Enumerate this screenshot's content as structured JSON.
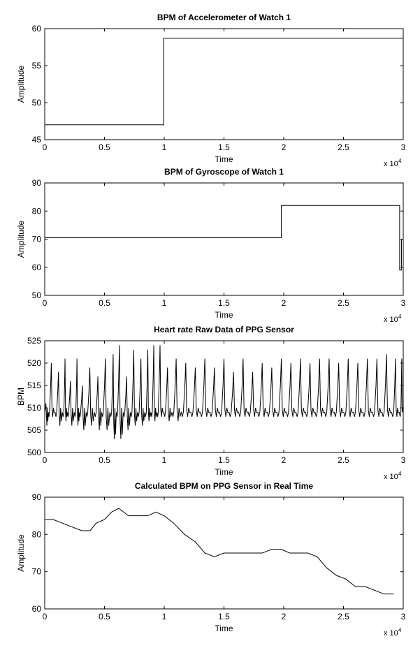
{
  "chart_data": [
    {
      "type": "line",
      "title": "BPM of Accelerometer of Watch 1",
      "xlabel": "Time",
      "ylabel": "Amplitude",
      "xlim": [
        0,
        30000
      ],
      "ylim": [
        45,
        60
      ],
      "x_ticks": [
        0,
        5000,
        10000,
        15000,
        20000,
        25000,
        30000
      ],
      "x_tick_labels": [
        "0",
        "0.5",
        "1",
        "1.5",
        "2",
        "2.5",
        "3"
      ],
      "y_ticks": [
        45,
        50,
        55,
        60
      ],
      "y_tick_labels": [
        "45",
        "50",
        "55",
        "60"
      ],
      "x_exponent": "x 10",
      "x_exponent_power": "4",
      "grid": false,
      "series": [
        {
          "x": [
            0,
            9950,
            9950,
            30000
          ],
          "y": [
            47,
            47,
            58.7,
            58.7
          ]
        }
      ]
    },
    {
      "type": "line",
      "title": "BPM of Gyroscope of Watch 1",
      "xlabel": "Time",
      "ylabel": "Amplitude",
      "xlim": [
        0,
        30000
      ],
      "ylim": [
        50,
        90
      ],
      "x_ticks": [
        0,
        5000,
        10000,
        15000,
        20000,
        25000,
        30000
      ],
      "x_tick_labels": [
        "0",
        "0.5",
        "1",
        "1.5",
        "2",
        "2.5",
        "3"
      ],
      "y_ticks": [
        50,
        60,
        70,
        80,
        90
      ],
      "y_tick_labels": [
        "50",
        "60",
        "70",
        "80",
        "90"
      ],
      "x_exponent": "x 10",
      "x_exponent_power": "4",
      "grid": false,
      "series": [
        {
          "x": [
            0,
            19800,
            19800,
            29700,
            29700,
            29850,
            29850,
            30000
          ],
          "y": [
            70.5,
            70.5,
            82,
            82,
            59,
            59,
            70,
            70
          ]
        }
      ]
    },
    {
      "type": "line",
      "title": "Heart rate Raw Data of PPG Sensor",
      "xlabel": "Time",
      "ylabel": "BPM",
      "xlim": [
        0,
        30000
      ],
      "ylim": [
        500,
        525
      ],
      "x_ticks": [
        0,
        5000,
        10000,
        15000,
        20000,
        25000,
        30000
      ],
      "x_tick_labels": [
        "0",
        "0.5",
        "1",
        "1.5",
        "2",
        "2.5",
        "3"
      ],
      "y_ticks": [
        500,
        505,
        510,
        515,
        520,
        525
      ],
      "y_tick_labels": [
        "500",
        "505",
        "510",
        "515",
        "520",
        "525"
      ],
      "x_exponent": "x 10",
      "x_exponent_power": "4",
      "grid": false,
      "series": [
        {
          "x": [
            0,
            400,
            1000,
            1600,
            2000,
            2600,
            3000,
            3600,
            4300,
            4900,
            5600,
            6100,
            6700,
            7300,
            7900,
            8500,
            9000,
            9500,
            10100,
            10800,
            11600,
            12400,
            13200,
            14000,
            14800,
            15600,
            16400,
            17200,
            18000,
            18800,
            19600,
            20400,
            21200,
            22000,
            22800,
            23600,
            24400,
            25200,
            26000,
            26800,
            27600,
            28400,
            29200,
            29800
          ],
          "peaks": [
            511,
            520,
            518,
            521,
            516,
            521,
            515,
            519,
            517,
            521,
            522,
            524,
            517,
            523,
            521,
            523,
            524,
            524,
            519,
            521,
            520,
            519,
            521,
            519,
            521,
            518,
            521,
            518,
            520,
            519,
            521,
            520,
            521,
            520,
            521,
            521,
            520,
            521,
            520,
            521,
            521,
            522,
            521,
            521
          ],
          "troughs": [
            506,
            508,
            506,
            507,
            506,
            506,
            505,
            506,
            505,
            505,
            503,
            503,
            505,
            506,
            506,
            507,
            507,
            508,
            507,
            507,
            508,
            508,
            508,
            508,
            508,
            508,
            508,
            508,
            508,
            508,
            508,
            508,
            508,
            508,
            508,
            508,
            508,
            508,
            508,
            508,
            508,
            508,
            508,
            509
          ]
        }
      ]
    },
    {
      "type": "line",
      "title": "Calculated BPM on PPG Sensor in Real Time",
      "xlabel": "Time",
      "ylabel": "Amplitude",
      "xlim": [
        0,
        30000
      ],
      "ylim": [
        60,
        90
      ],
      "x_ticks": [
        0,
        5000,
        10000,
        15000,
        20000,
        25000,
        30000
      ],
      "x_tick_labels": [
        "0",
        "0.5",
        "1",
        "1.5",
        "2",
        "2.5",
        "3"
      ],
      "y_ticks": [
        60,
        70,
        80,
        90
      ],
      "y_tick_labels": [
        "60",
        "70",
        "80",
        "90"
      ],
      "x_exponent": "x 10",
      "x_exponent_power": "4",
      "grid": false,
      "series": [
        {
          "x": [
            0,
            700,
            1500,
            2300,
            3100,
            3800,
            4300,
            5000,
            5600,
            6200,
            7000,
            7800,
            8600,
            9300,
            10000,
            10800,
            11700,
            12600,
            13400,
            14200,
            15000,
            15800,
            16600,
            17400,
            18200,
            19000,
            19800,
            20500,
            21200,
            22000,
            22800,
            23600,
            24400,
            25200,
            26000,
            26800,
            27600,
            28400,
            29200
          ],
          "y": [
            84,
            84,
            83,
            82,
            81,
            81,
            83,
            84,
            86,
            87,
            85,
            85,
            85,
            86,
            85,
            83,
            80,
            78,
            75,
            74,
            75,
            75,
            75,
            75,
            75,
            76,
            76,
            75,
            75,
            75,
            74,
            71,
            69,
            68,
            66,
            66,
            65,
            64,
            64
          ]
        }
      ]
    }
  ]
}
